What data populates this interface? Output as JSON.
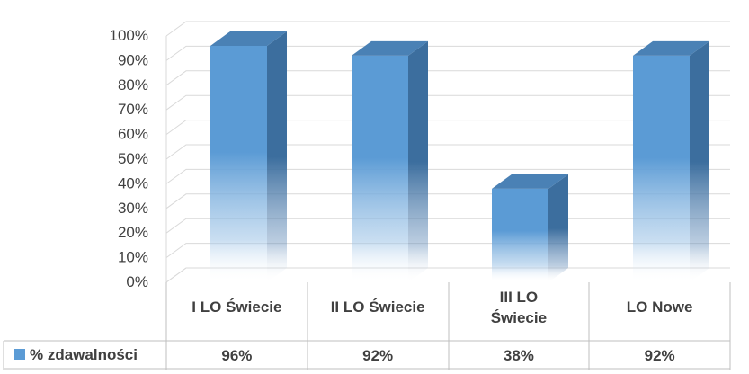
{
  "chart_data": {
    "type": "bar",
    "style": "3d-column-with-data-table",
    "categories": [
      "I LO Świecie",
      "II LO Świecie",
      "III LO Świecie",
      "LO Nowe"
    ],
    "category_lines": [
      [
        "I LO Świecie"
      ],
      [
        "II LO Świecie"
      ],
      [
        "III LO",
        "Świecie"
      ],
      [
        "LO Nowe"
      ]
    ],
    "series": [
      {
        "name": "% zdawalności",
        "values": [
          96,
          92,
          38,
          92
        ],
        "labels": [
          "96%",
          "92%",
          "38%",
          "92%"
        ]
      }
    ],
    "ylim": [
      0,
      100
    ],
    "yticks": [
      0,
      10,
      20,
      30,
      40,
      50,
      60,
      70,
      80,
      90,
      100
    ],
    "ytick_labels": [
      "0%",
      "10%",
      "20%",
      "30%",
      "40%",
      "50%",
      "60%",
      "70%",
      "80%",
      "90%",
      "100%"
    ],
    "grid": true,
    "legend": "in-data-table-row-header",
    "colors": {
      "front": "#5B9BD5",
      "side": "#3C6E9E",
      "top": "#4A81B5",
      "grid": "#D9D9D9",
      "text": "#404040",
      "table_border": "#BFBFBF"
    }
  }
}
